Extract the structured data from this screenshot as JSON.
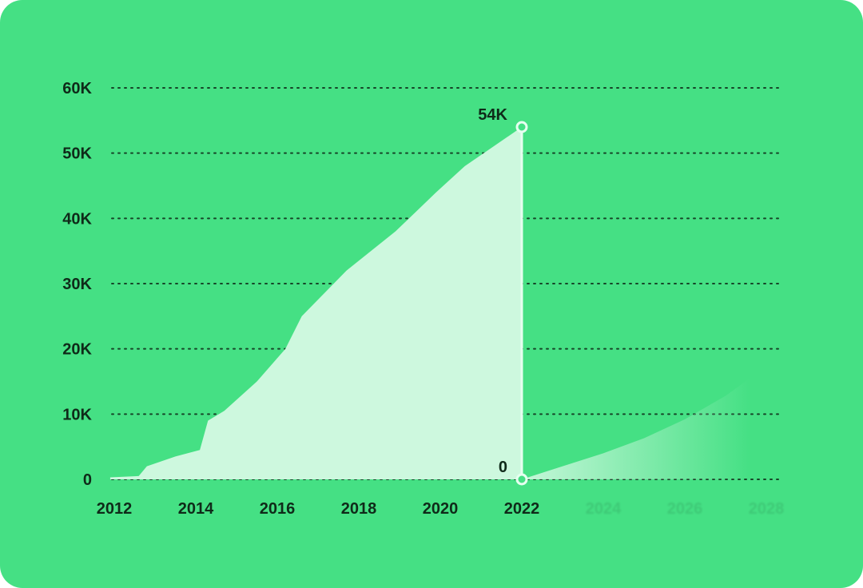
{
  "chart_data": {
    "type": "area",
    "title": "",
    "xlabel": "",
    "ylabel": "",
    "xlim": [
      2012,
      2028
    ],
    "ylim": [
      0,
      60000
    ],
    "grid": true,
    "y_ticks": [
      {
        "value": 0,
        "label": "0"
      },
      {
        "value": 10000,
        "label": "10K"
      },
      {
        "value": 20000,
        "label": "20K"
      },
      {
        "value": 30000,
        "label": "30K"
      },
      {
        "value": 40000,
        "label": "40K"
      },
      {
        "value": 50000,
        "label": "50K"
      },
      {
        "value": 60000,
        "label": "60K"
      }
    ],
    "x_ticks": [
      {
        "value": 2012,
        "label": "2012",
        "faded": false
      },
      {
        "value": 2014,
        "label": "2014",
        "faded": false
      },
      {
        "value": 2016,
        "label": "2016",
        "faded": false
      },
      {
        "value": 2018,
        "label": "2018",
        "faded": false
      },
      {
        "value": 2020,
        "label": "2020",
        "faded": false
      },
      {
        "value": 2022,
        "label": "2022",
        "faded": false
      },
      {
        "value": 2024,
        "label": "2024",
        "faded": true
      },
      {
        "value": 2026,
        "label": "2026",
        "faded": true
      },
      {
        "value": 2028,
        "label": "2028",
        "faded": true
      }
    ],
    "series": [
      {
        "x": [
          2011.9,
          2012.6,
          2012.8,
          2013.5,
          2014.1,
          2014.3,
          2014.7,
          2015.5,
          2016.2,
          2016.6,
          2017.7,
          2018.9,
          2019.9,
          2020.6,
          2021.3,
          2022
        ],
        "y": [
          300,
          500,
          2000,
          3500,
          4500,
          9000,
          10500,
          15000,
          20000,
          25000,
          32000,
          38000,
          44000,
          48000,
          51000,
          54000
        ]
      },
      {
        "projection": true,
        "x": [
          2022,
          2023,
          2024,
          2025,
          2026,
          2027,
          2027.6
        ],
        "y": [
          0,
          2000,
          4000,
          6300,
          9200,
          12800,
          15500
        ]
      }
    ],
    "annotations": [
      {
        "x": 2022,
        "y": 54000,
        "label": "54K"
      },
      {
        "x": 2022,
        "y": 0,
        "label": "0"
      }
    ],
    "colors": {
      "background": "#45e084",
      "area": "#cdf8de",
      "text": "#0f2a19",
      "grid": "#0f2a19"
    }
  }
}
